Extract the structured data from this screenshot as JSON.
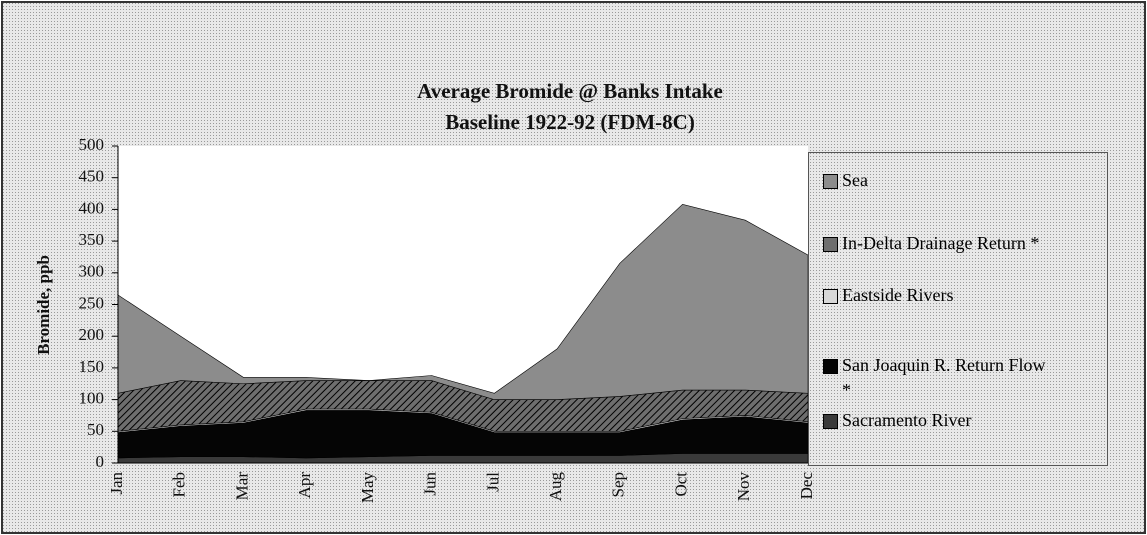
{
  "chart_data": {
    "type": "stacked_area",
    "title": "Average Bromide @ Banks Intake",
    "subtitle": "Baseline 1922-92 (FDM-8C)",
    "y_label": "Bromide, ppb",
    "categories": [
      "Jan",
      "Feb",
      "Mar",
      "Apr",
      "May",
      "Jun",
      "Jul",
      "Aug",
      "Sep",
      "Oct",
      "Nov",
      "Dec"
    ],
    "series": [
      {
        "name": "Sacramento River",
        "color": "#3a3a3a",
        "values": [
          8,
          10,
          10,
          8,
          10,
          12,
          12,
          12,
          12,
          15,
          15,
          15
        ]
      },
      {
        "name": "San Joaquin R. Return Flow *",
        "color": "#050505",
        "values": [
          40,
          48,
          53,
          75,
          73,
          66,
          36,
          36,
          36,
          53,
          58,
          48
        ]
      },
      {
        "name": "Eastside Rivers",
        "color": "#d8d8d8",
        "values": [
          2,
          2,
          2,
          2,
          2,
          2,
          2,
          2,
          2,
          2,
          2,
          2
        ]
      },
      {
        "name": "In-Delta Drainage Return *",
        "color": "#6e6e6e",
        "values": [
          60,
          70,
          60,
          45,
          45,
          50,
          50,
          50,
          55,
          45,
          40,
          45
        ]
      },
      {
        "name": "Sea",
        "color": "#8c8c8c",
        "values": [
          155,
          70,
          10,
          5,
          0,
          8,
          10,
          80,
          210,
          293,
          268,
          218
        ]
      }
    ],
    "ylim": [
      0,
      500
    ],
    "yticks": [
      0,
      50,
      100,
      150,
      200,
      250,
      300,
      350,
      400,
      450,
      500
    ]
  }
}
